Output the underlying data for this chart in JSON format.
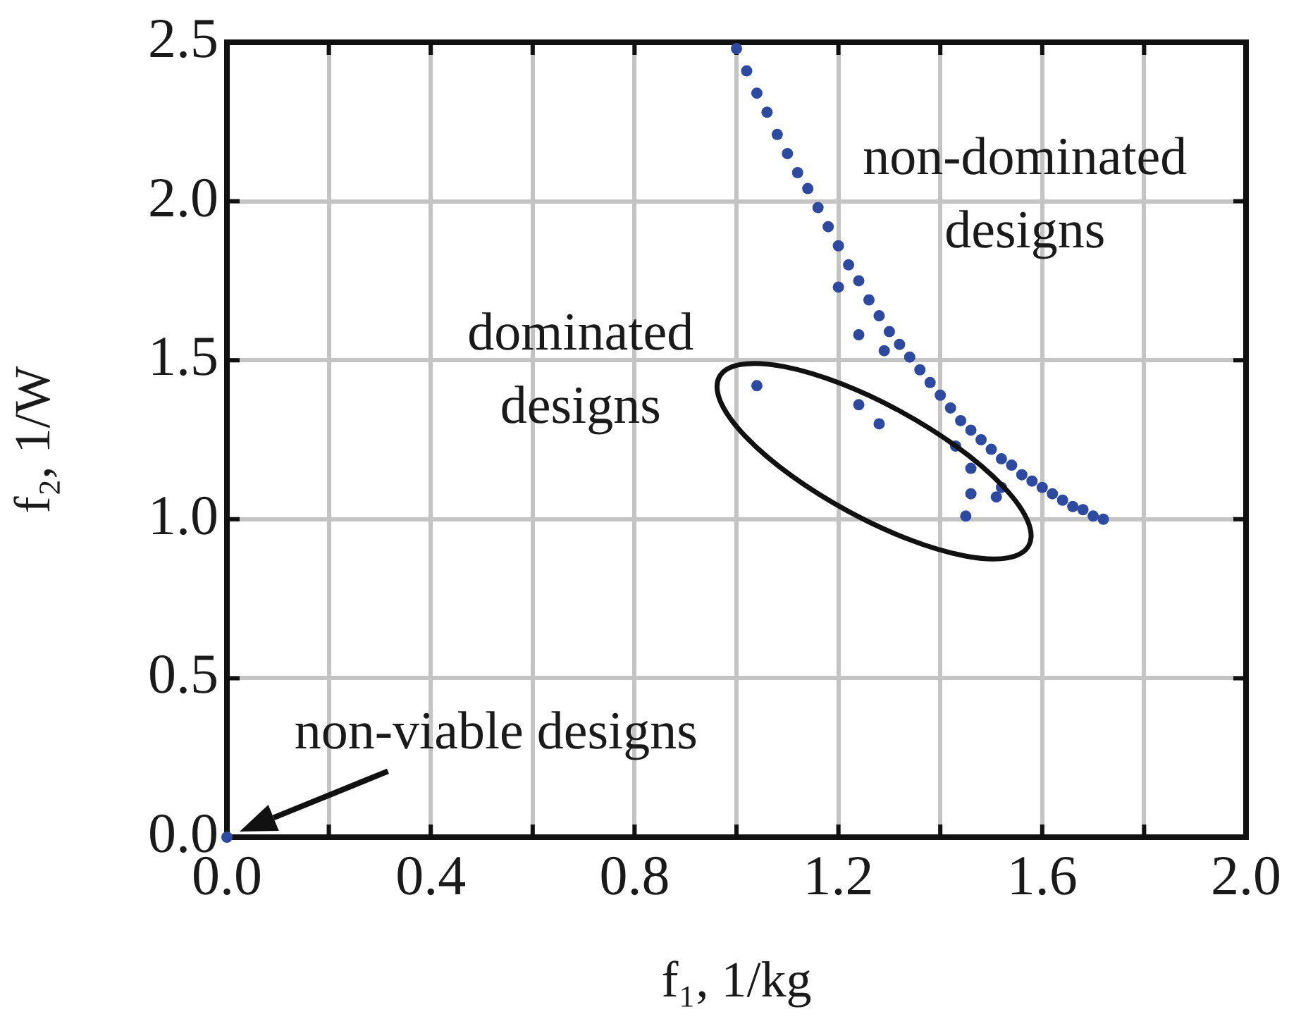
{
  "chart_data": {
    "type": "scatter",
    "xlabel": "f₁, 1/kg",
    "ylabel": "f₂, 1/W",
    "x": [
      0,
      1.0,
      1.02,
      1.04,
      1.06,
      1.08,
      1.1,
      1.12,
      1.14,
      1.16,
      1.18,
      1.2,
      1.22,
      1.24,
      1.26,
      1.28,
      1.3,
      1.32,
      1.34,
      1.36,
      1.38,
      1.4,
      1.42,
      1.44,
      1.46,
      1.48,
      1.5,
      1.52,
      1.54,
      1.56,
      1.58,
      1.6,
      1.62,
      1.64,
      1.66,
      1.68,
      1.7,
      1.72,
      1.04,
      1.2,
      1.24,
      1.29,
      1.24,
      1.28,
      1.43,
      1.46,
      1.46,
      1.52,
      1.51,
      1.45
    ],
    "series": [
      {
        "color": "#2e4aa0",
        "values": [
          0,
          2.48,
          2.41,
          2.34,
          2.28,
          2.21,
          2.15,
          2.09,
          2.04,
          1.98,
          1.92,
          1.86,
          1.8,
          1.75,
          1.69,
          1.64,
          1.59,
          1.55,
          1.51,
          1.47,
          1.43,
          1.39,
          1.35,
          1.31,
          1.28,
          1.25,
          1.22,
          1.19,
          1.17,
          1.14,
          1.12,
          1.1,
          1.08,
          1.06,
          1.04,
          1.03,
          1.01,
          1.0,
          1.42,
          1.73,
          1.58,
          1.53,
          1.36,
          1.3,
          1.23,
          1.16,
          1.08,
          1.1,
          1.07,
          1.01
        ]
      }
    ],
    "xlim": [
      0,
      2.0
    ],
    "xticks": [
      {
        "value": 0,
        "label": "0.0"
      },
      {
        "value": 0.2,
        "label": null
      },
      {
        "value": 0.4,
        "label": "0.4"
      },
      {
        "value": 0.6,
        "label": null
      },
      {
        "value": 0.8,
        "label": "0.8"
      },
      {
        "value": 1.0,
        "label": null
      },
      {
        "value": 1.2,
        "label": "1.2"
      },
      {
        "value": 1.4,
        "label": null
      },
      {
        "value": 1.6,
        "label": "1.6"
      },
      {
        "value": 1.8,
        "label": null
      },
      {
        "value": 2.0,
        "label": "2.0"
      }
    ],
    "ylim": [
      0,
      2.5
    ],
    "yticks": [
      {
        "value": 0,
        "label": "0.0"
      },
      {
        "value": 0.5,
        "label": "0.5"
      },
      {
        "value": 1.0,
        "label": "1.0"
      },
      {
        "value": 1.5,
        "label": "1.5"
      },
      {
        "value": 2.0,
        "label": "2.0"
      },
      {
        "value": 2.5,
        "label": "2.5"
      }
    ],
    "grid": true,
    "marker": "circle",
    "annotations": [
      "non-dominated\ndesigns",
      "dominated\ndesigns",
      {
        "text": "non-viable designs",
        "x": 0,
        "y": 0
      }
    ]
  }
}
